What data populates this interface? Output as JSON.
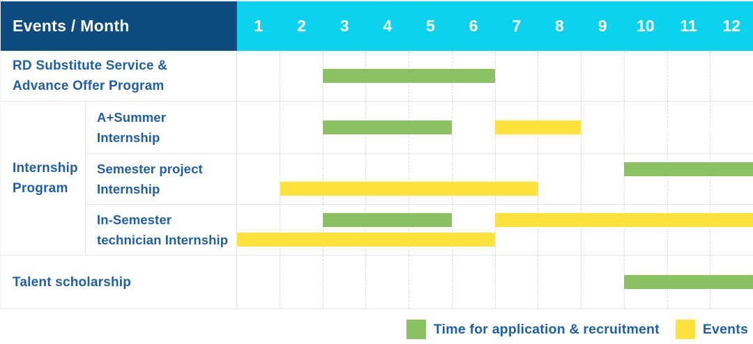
{
  "header": {
    "label": "Events / Month"
  },
  "months": [
    "1",
    "2",
    "3",
    "4",
    "5",
    "6",
    "7",
    "8",
    "9",
    "10",
    "11",
    "12"
  ],
  "rows": {
    "rd": {
      "line1": "RD Substitute Service &",
      "line2": "Advance Offer Program"
    },
    "group": {
      "line1": "Internship",
      "line2": "Program"
    },
    "summer": {
      "line1": "A+Summer",
      "line2": "Internship"
    },
    "semester": {
      "line1": "Semester project",
      "line2": "Internship"
    },
    "technician": {
      "line1": "In-Semester",
      "line2": "technician Internship"
    },
    "talent": {
      "line1": "Talent scholarship"
    }
  },
  "legend": {
    "green_label": "Time for application & recruitment",
    "yellow_label": "Events"
  },
  "colors": {
    "header_bg": "#0E4B81",
    "months_bg": "#0BD3EE",
    "green": "#8AC162",
    "yellow": "#FFE33C",
    "text_blue": "#1E5FA9"
  },
  "chart_data": {
    "type": "gantt-table",
    "title": "Events / Month",
    "x_axis": {
      "label": "Month",
      "ticks": [
        1,
        2,
        3,
        4,
        5,
        6,
        7,
        8,
        9,
        10,
        11,
        12
      ],
      "range": [
        1,
        12
      ]
    },
    "legend": [
      "Time for application & recruitment",
      "Events"
    ],
    "legend_position": "bottom-right",
    "grid": "vertical-dashed",
    "rows": [
      {
        "name": "RD Substitute Service & Advance Offer Program",
        "bars": [
          {
            "series": "Time for application & recruitment",
            "start_month": 3,
            "end_month": 6,
            "lane": "center"
          }
        ]
      },
      {
        "name": "A+Summer Internship",
        "group": "Internship Program",
        "bars": [
          {
            "series": "Time for application & recruitment",
            "start_month": 3,
            "end_month": 5,
            "lane": "center"
          },
          {
            "series": "Events",
            "start_month": 7,
            "end_month": 8,
            "lane": "center"
          }
        ]
      },
      {
        "name": "Semester project Internship",
        "group": "Internship Program",
        "bars": [
          {
            "series": "Time for application & recruitment",
            "start_month": 10,
            "end_month": 12,
            "lane": "top"
          },
          {
            "series": "Events",
            "start_month": 2,
            "end_month": 7,
            "lane": "bottom"
          }
        ]
      },
      {
        "name": "In-Semester technician Internship",
        "group": "Internship Program",
        "bars": [
          {
            "series": "Time for application & recruitment",
            "start_month": 3,
            "end_month": 5,
            "lane": "top"
          },
          {
            "series": "Events",
            "start_month": 7,
            "end_month": 12,
            "lane": "top"
          },
          {
            "series": "Events",
            "start_month": 1,
            "end_month": 6,
            "lane": "bottom"
          }
        ]
      },
      {
        "name": "Talent scholarship",
        "bars": [
          {
            "series": "Time for application & recruitment",
            "start_month": 10,
            "end_month": 12,
            "lane": "center"
          }
        ]
      }
    ]
  }
}
